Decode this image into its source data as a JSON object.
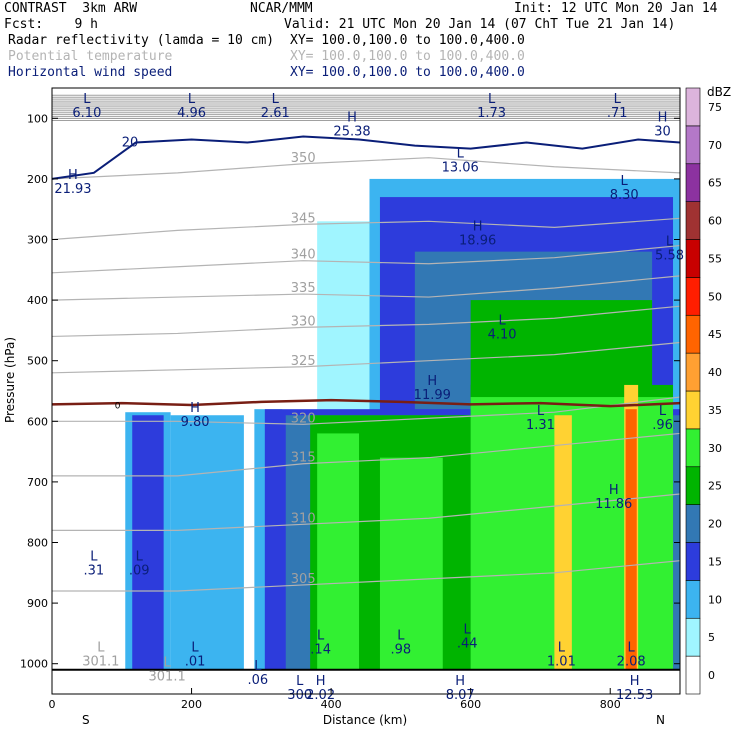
{
  "header": {
    "left1": "CONTRAST  3km ARW",
    "center1": "NCAR/MMM",
    "right1": "Init: 12 UTC Mon 20 Jan 14",
    "left2": "Fcst:    9 h",
    "right2": "Valid: 21 UTC Mon 20 Jan 14 (07 ChT Tue 21 Jan 14)",
    "field1": "Radar reflectivity (lamda = 10 cm)",
    "field1_xy": "XY= 100.0,100.0 to 100.0,400.0",
    "field2": "Potential temperature",
    "field2_xy": "XY= 100.0,100.0 to 100.0,400.0",
    "field3": "Horizontal wind speed",
    "field3_xy": "XY= 100.0,100.0 to 100.0,400.0",
    "field_colors": [
      "#000000",
      "#b4b4b4",
      "#0a1e78"
    ]
  },
  "chart_data": {
    "type": "heatmap",
    "xlabel": "Distance (km)",
    "ylabel": "Pressure (hPa)",
    "xlim": [
      0,
      900
    ],
    "ylim": [
      1050,
      50
    ],
    "x_ticks": [
      0,
      200,
      400,
      600,
      800
    ],
    "y_ticks": [
      100,
      200,
      300,
      400,
      500,
      600,
      700,
      800,
      900,
      1000
    ],
    "x_end_labels": [
      "S",
      "N"
    ],
    "colorbar": {
      "unit": "dBZ",
      "levels": [
        0,
        5,
        10,
        15,
        20,
        25,
        30,
        35,
        40,
        45,
        50,
        55,
        60,
        65,
        70,
        75
      ],
      "colors": [
        "#ffffff",
        "#a0f5ff",
        "#3cb4f0",
        "#2d3cdc",
        "#3278b4",
        "#00b400",
        "#32f032",
        "#ffd232",
        "#ffa032",
        "#ff6400",
        "#ff1e00",
        "#c80000",
        "#a03232",
        "#8c32a0",
        "#b478c8",
        "#dcb4dc"
      ]
    },
    "reflectivity_columns": [
      {
        "x": [
          105,
          170
        ],
        "top": 585,
        "bottom": 1010,
        "dbz": 10
      },
      {
        "x": [
          115,
          160
        ],
        "top": 590,
        "bottom": 1010,
        "dbz": 15
      },
      {
        "x": [
          170,
          275
        ],
        "top": 590,
        "bottom": 1010,
        "dbz": 10
      },
      {
        "x": [
          290,
          330
        ],
        "top": 580,
        "bottom": 1010,
        "dbz": 10
      },
      {
        "x": [
          305,
          900
        ],
        "top": 580,
        "bottom": 1010,
        "dbz": 15
      },
      {
        "x": [
          335,
          900
        ],
        "top": 590,
        "bottom": 1010,
        "dbz": 20
      },
      {
        "x": [
          370,
          600
        ],
        "top": 590,
        "bottom": 1010,
        "dbz": 25
      },
      {
        "x": [
          600,
          890
        ],
        "top": 540,
        "bottom": 1010,
        "dbz": 25
      },
      {
        "x": [
          380,
          440
        ],
        "top": 620,
        "bottom": 1010,
        "dbz": 30
      },
      {
        "x": [
          470,
          560
        ],
        "top": 660,
        "bottom": 1010,
        "dbz": 30
      },
      {
        "x": [
          600,
          890
        ],
        "top": 560,
        "bottom": 1010,
        "dbz": 30
      },
      {
        "x": [
          720,
          745
        ],
        "top": 590,
        "bottom": 1010,
        "dbz": 35
      },
      {
        "x": [
          820,
          840
        ],
        "top": 540,
        "bottom": 1010,
        "dbz": 35
      },
      {
        "x": [
          822,
          838
        ],
        "top": 580,
        "bottom": 1010,
        "dbz": 45
      }
    ],
    "upper_cloud": [
      {
        "x": [
          380,
          900
        ],
        "top": 270,
        "bottom": 590,
        "dbz": 5
      },
      {
        "x": [
          455,
          900
        ],
        "top": 200,
        "bottom": 590,
        "dbz": 10
      },
      {
        "x": [
          470,
          890
        ],
        "top": 230,
        "bottom": 590,
        "dbz": 15
      },
      {
        "x": [
          520,
          860
        ],
        "top": 320,
        "bottom": 590,
        "dbz": 20
      },
      {
        "x": [
          600,
          860
        ],
        "top": 400,
        "bottom": 590,
        "dbz": 25
      }
    ],
    "theta_contours": [
      {
        "value": 350,
        "label": "350",
        "y": [
          200,
          190,
          175,
          165,
          180,
          190
        ]
      },
      {
        "value": 345,
        "label": "345",
        "y": [
          300,
          285,
          275,
          270,
          280,
          265
        ]
      },
      {
        "value": 340,
        "label": "340",
        "y": [
          355,
          345,
          335,
          340,
          330,
          310
        ]
      },
      {
        "value": 335,
        "label": "335",
        "y": [
          400,
          395,
          390,
          395,
          380,
          360
        ]
      },
      {
        "value": 330,
        "label": "330",
        "y": [
          460,
          455,
          445,
          440,
          430,
          410
        ]
      },
      {
        "value": 325,
        "label": "325",
        "y": [
          520,
          515,
          510,
          500,
          490,
          470
        ]
      },
      {
        "value": 320,
        "label": "320",
        "y": [
          600,
          600,
          605,
          595,
          585,
          560
        ]
      },
      {
        "value": 315,
        "label": "315",
        "y": [
          690,
          690,
          670,
          660,
          640,
          620
        ]
      },
      {
        "value": 310,
        "label": "310",
        "y": [
          780,
          780,
          770,
          760,
          740,
          720
        ]
      },
      {
        "value": 305,
        "label": "305",
        "y": [
          880,
          880,
          870,
          860,
          850,
          830
        ]
      }
    ],
    "theta_x": [
      0,
      180,
      360,
      540,
      720,
      900
    ],
    "freezing_level": {
      "label": "0",
      "x": [
        0,
        100,
        200,
        300,
        400,
        500,
        600,
        700,
        800,
        900
      ],
      "y": [
        572,
        570,
        573,
        568,
        565,
        568,
        572,
        570,
        575,
        570
      ]
    },
    "wind_contour_20": {
      "label": "20",
      "x": [
        0,
        60,
        120,
        200,
        280,
        360,
        440,
        520,
        600,
        680,
        760,
        840,
        900
      ],
      "y": [
        200,
        190,
        140,
        135,
        140,
        130,
        135,
        145,
        150,
        140,
        150,
        135,
        140
      ]
    },
    "extrema_labels": [
      {
        "text": "L",
        "x": 50,
        "p": 75,
        "tag": "6.10"
      },
      {
        "text": "L",
        "x": 200,
        "p": 75,
        "tag": "4.96"
      },
      {
        "text": "L",
        "x": 320,
        "p": 75,
        "tag": "2.61"
      },
      {
        "text": "H",
        "x": 430,
        "p": 105,
        "tag": "25.38"
      },
      {
        "text": "L",
        "x": 630,
        "p": 75,
        "tag": "1.73"
      },
      {
        "text": "L",
        "x": 810,
        "p": 75,
        "tag": ".71"
      },
      {
        "text": "H",
        "x": 875,
        "p": 105,
        "tag": "30"
      },
      {
        "text": "H",
        "x": 30,
        "p": 200,
        "tag": "21.93"
      },
      {
        "text": "L",
        "x": 585,
        "p": 165,
        "tag": "13.06"
      },
      {
        "text": "L",
        "x": 820,
        "p": 210,
        "tag": "8.30"
      },
      {
        "text": "H",
        "x": 610,
        "p": 285,
        "tag": "18.96"
      },
      {
        "text": "L",
        "x": 885,
        "p": 310,
        "tag": "5.58"
      },
      {
        "text": "L",
        "x": 645,
        "p": 440,
        "tag": "4.10"
      },
      {
        "text": "H",
        "x": 545,
        "p": 540,
        "tag": "11.99"
      },
      {
        "text": "H",
        "x": 205,
        "p": 585,
        "tag": "9.80"
      },
      {
        "text": "L",
        "x": 700,
        "p": 590,
        "tag": "1.31"
      },
      {
        "text": "L",
        "x": 875,
        "p": 590,
        "tag": ".96"
      },
      {
        "text": "H",
        "x": 805,
        "p": 720,
        "tag": "11.86"
      },
      {
        "text": "L",
        "x": 60,
        "p": 830,
        "tag": ".31"
      },
      {
        "text": "L",
        "x": 125,
        "p": 830,
        "tag": ".09"
      },
      {
        "text": "L",
        "x": 70,
        "p": 980,
        "tag": "301.1"
      },
      {
        "text": "L",
        "x": 165,
        "p": 1005,
        "tag": "301.1"
      },
      {
        "text": "L",
        "x": 205,
        "p": 980,
        "tag": ".01"
      },
      {
        "text": "L",
        "x": 295,
        "p": 1010,
        "tag": ".06"
      },
      {
        "text": "L",
        "x": 385,
        "p": 960,
        "tag": ".14"
      },
      {
        "text": "L",
        "x": 500,
        "p": 960,
        "tag": ".98"
      },
      {
        "text": "L",
        "x": 595,
        "p": 950,
        "tag": ".44"
      },
      {
        "text": "L",
        "x": 730,
        "p": 980,
        "tag": "1.01"
      },
      {
        "text": "L",
        "x": 830,
        "p": 980,
        "tag": "2.08"
      },
      {
        "text": "H",
        "x": 385,
        "p": 1035,
        "tag": "2.02"
      },
      {
        "text": "L",
        "x": 355,
        "p": 1035,
        "tag": "300"
      },
      {
        "text": "H",
        "x": 585,
        "p": 1035,
        "tag": "8.07"
      },
      {
        "text": "H",
        "x": 835,
        "p": 1035,
        "tag": "12.53"
      }
    ]
  }
}
